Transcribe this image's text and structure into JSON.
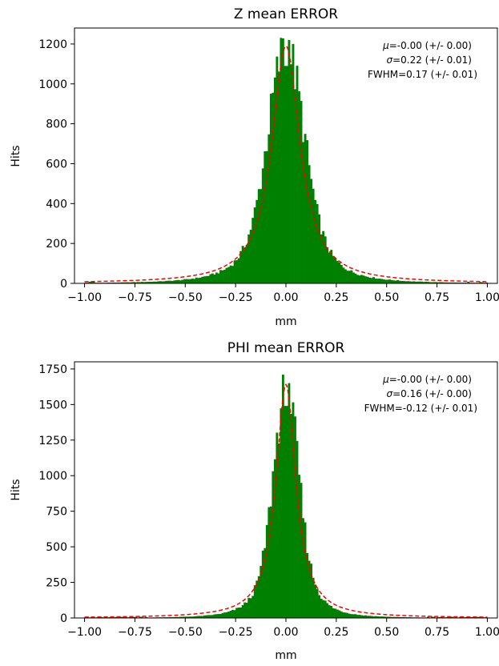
{
  "chart_data": [
    {
      "type": "bar",
      "title": "Z mean ERROR",
      "xlabel": "mm",
      "ylabel": "Hits",
      "xlim": [
        -1.05,
        1.05
      ],
      "ylim": [
        0,
        1280
      ],
      "xticks": [
        -1.0,
        -0.75,
        -0.5,
        -0.25,
        0.0,
        0.25,
        0.5,
        0.75,
        1.0
      ],
      "xtick_labels": [
        "−1.00",
        "−0.75",
        "−0.50",
        "−0.25",
        "0.00",
        "0.25",
        "0.50",
        "0.75",
        "1.00"
      ],
      "yticks": [
        0,
        200,
        400,
        600,
        800,
        1000,
        1200
      ],
      "ytick_labels": [
        "0",
        "200",
        "400",
        "600",
        "800",
        "1000",
        "1200"
      ],
      "bar_color": "#008000",
      "fit_color": "#ff0000",
      "bin_range": [
        -1.0,
        1.0
      ],
      "bin_count": 200,
      "hist_sigma_core": 0.085,
      "hist_peak": 1180,
      "hist_tail_gamma": 0.19,
      "fit_peak": 1190,
      "fit_hwhm": 0.085,
      "annotations": [
        {
          "sym": "μ",
          "text": "=-0.00 (+/- 0.00)"
        },
        {
          "sym": "σ",
          "text": "=0.22 (+/- 0.01)"
        },
        {
          "sym": "",
          "text": "FWHM=0.17 (+/- 0.01)"
        }
      ],
      "spikes": [
        {
          "x": -0.015,
          "y": 1228
        },
        {
          "x": 0.0,
          "y": 1090
        },
        {
          "x": 0.015,
          "y": 1220
        }
      ]
    },
    {
      "type": "bar",
      "title": "PHI mean ERROR",
      "xlabel": "mm",
      "ylabel": "Hits",
      "xlim": [
        -1.05,
        1.05
      ],
      "ylim": [
        0,
        1800
      ],
      "xticks": [
        -1.0,
        -0.75,
        -0.5,
        -0.25,
        0.0,
        0.25,
        0.5,
        0.75,
        1.0
      ],
      "xtick_labels": [
        "−1.00",
        "−0.75",
        "−0.50",
        "−0.25",
        "0.00",
        "0.25",
        "0.50",
        "0.75",
        "1.00"
      ],
      "yticks": [
        0,
        250,
        500,
        750,
        1000,
        1250,
        1500,
        1750
      ],
      "ytick_labels": [
        "0",
        "250",
        "500",
        "750",
        "1000",
        "1250",
        "1500",
        "1750"
      ],
      "bar_color": "#008000",
      "fit_color": "#ff0000",
      "bin_range": [
        -1.0,
        1.0
      ],
      "bin_count": 200,
      "hist_sigma_core": 0.06,
      "hist_peak": 1600,
      "hist_tail_gamma": 0.13,
      "fit_peak": 1640,
      "fit_hwhm": 0.06,
      "annotations": [
        {
          "sym": "μ",
          "text": "=-0.00 (+/- 0.00)"
        },
        {
          "sym": "σ",
          "text": "=0.16 (+/- 0.00)"
        },
        {
          "sym": "",
          "text": "FWHM=-0.12 (+/- 0.01)"
        }
      ],
      "spikes": [
        {
          "x": -0.015,
          "y": 1710
        },
        {
          "x": 0.0,
          "y": 1490
        },
        {
          "x": 0.015,
          "y": 1650
        }
      ]
    }
  ]
}
